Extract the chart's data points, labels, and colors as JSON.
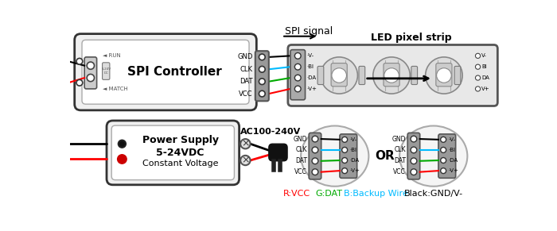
{
  "bg_color": "#ffffff",
  "spi_controller_label": "SPI Controller",
  "power_supply_line1": "Power Supply",
  "power_supply_line2": "5-24VDC",
  "power_supply_line3": "Constant Voltage",
  "ac_label": "AC100-240V",
  "spi_signal_label": "SPI signal",
  "led_strip_label": "LED pixel strip",
  "or_label": "OR",
  "legend_r": "R:VCC",
  "legend_g": "G:DAT",
  "legend_b": "B:Backup Wire",
  "legend_k": "Black:GND/V-",
  "connector_labels": [
    "GND",
    "CLK",
    "DAT",
    "VCC"
  ],
  "strip_labels_left": [
    "V-",
    "BI",
    "DA",
    "V+"
  ],
  "strip_labels_right": [
    "V-",
    "BI",
    "DA",
    "V+"
  ],
  "color_red": "#ff0000",
  "color_green": "#00aa00",
  "color_blue": "#00bbff",
  "color_black": "#000000",
  "color_gray": "#888888",
  "color_darkgray": "#444444",
  "color_lightgray": "#cccccc",
  "color_ctrl_border": "#333333",
  "color_ctrl_fill": "#f0f0f0",
  "color_strip_fill": "#e8e8e8",
  "color_term_fill": "#999999",
  "color_term_border": "#555555"
}
